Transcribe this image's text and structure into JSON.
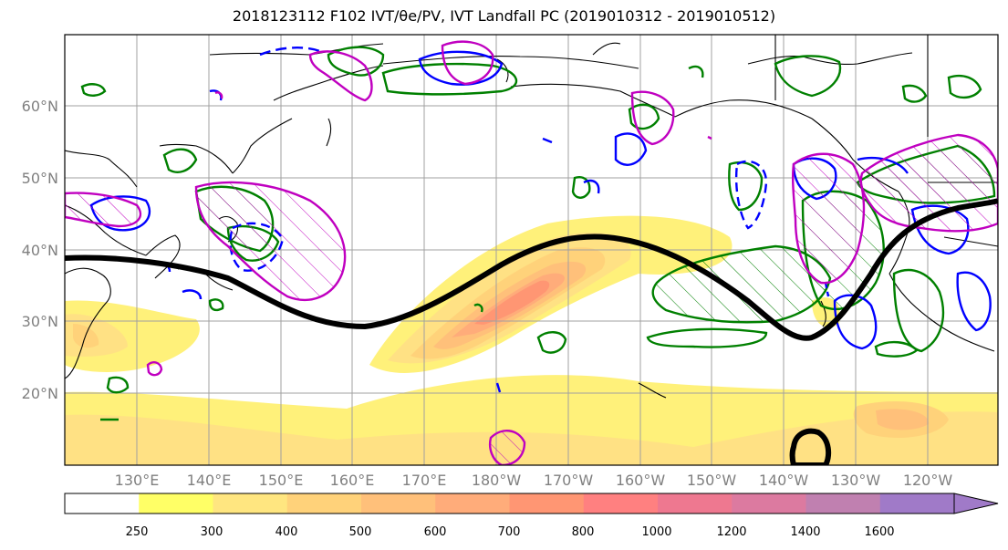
{
  "title": "2018123112 F102 IVT/θe/PV, IVT Landfall PC (2019010312 - 2019010512)",
  "lat_labels": [
    "60°N",
    "50°N",
    "40°N",
    "30°N",
    "20°N"
  ],
  "lon_labels": [
    "130°E",
    "140°E",
    "150°E",
    "160°E",
    "170°E",
    "180°W",
    "170°W",
    "160°W",
    "150°W",
    "140°W",
    "130°W",
    "120°W"
  ],
  "colorbar": {
    "ticks": [
      "250",
      "300",
      "400",
      "500",
      "600",
      "700",
      "800",
      "1000",
      "1200",
      "1400",
      "1600"
    ],
    "colors": [
      "#ffffff",
      "#ffff66",
      "#ffe680",
      "#ffd27a",
      "#ffc07a",
      "#ffac7a",
      "#ff9673",
      "#ff8080",
      "#ee7890",
      "#dc7aa0",
      "#c080b0",
      "#a07ac8"
    ]
  },
  "legend_colors": {
    "ivt_fill": "#ffd27a",
    "pv_contour": "#000000",
    "positive_anomaly": "#008000",
    "negative_anomaly": "#0000ff",
    "magenta": "#c000c0"
  }
}
